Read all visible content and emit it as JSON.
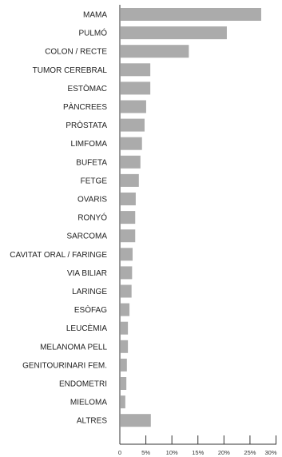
{
  "chart_data": {
    "type": "bar",
    "orientation": "horizontal",
    "categories": [
      "MAMA",
      "PULMÓ",
      "COLON / RECTE",
      "TUMOR CEREBRAL",
      "ESTÒMAC",
      "PÀNCREES",
      "PRÒSTATA",
      "LIMFOMA",
      "BUFETA",
      "FETGE",
      "OVARIS",
      "RONYÓ",
      "SARCOMA",
      "CAVITAT ORAL / FARINGE",
      "VIA BILIAR",
      "LARINGE",
      "ESÒFAG",
      "LEUCÈMIA",
      "MELANOMA PELL",
      "GENITOURINARI FEM.",
      "ENDOMETRI",
      "MIELOMA",
      "ALTRES"
    ],
    "values": [
      27,
      20.4,
      13.1,
      5.7,
      5.7,
      4.9,
      4.6,
      4.1,
      3.8,
      3.5,
      2.9,
      2.8,
      2.8,
      2.3,
      2.2,
      2.1,
      1.7,
      1.4,
      1.4,
      1.2,
      1.1,
      0.9,
      5.8
    ],
    "xlim": [
      0,
      30
    ],
    "xticks": [
      "0",
      "5%",
      "10%",
      "15%",
      "20%",
      "25%",
      "30%"
    ],
    "bar_color": "#ababab",
    "grid": false
  }
}
